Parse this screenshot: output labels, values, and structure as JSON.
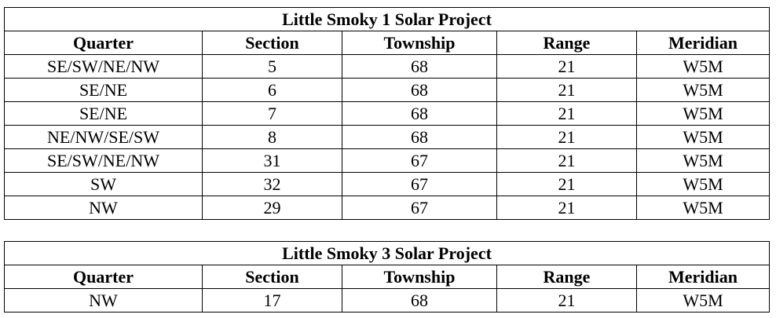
{
  "tables": [
    {
      "title": "Little Smoky 1 Solar Project",
      "columns": [
        "Quarter",
        "Section",
        "Township",
        "Range",
        "Meridian"
      ],
      "rows": [
        [
          "SE/SW/NE/NW",
          "5",
          "68",
          "21",
          "W5M"
        ],
        [
          "SE/NE",
          "6",
          "68",
          "21",
          "W5M"
        ],
        [
          "SE/NE",
          "7",
          "68",
          "21",
          "W5M"
        ],
        [
          "NE/NW/SE/SW",
          "8",
          "68",
          "21",
          "W5M"
        ],
        [
          "SE/SW/NE/NW",
          "31",
          "67",
          "21",
          "W5M"
        ],
        [
          "SW",
          "32",
          "67",
          "21",
          "W5M"
        ],
        [
          "NW",
          "29",
          "67",
          "21",
          "W5M"
        ]
      ]
    },
    {
      "title": "Little Smoky 3 Solar Project",
      "columns": [
        "Quarter",
        "Section",
        "Township",
        "Range",
        "Meridian"
      ],
      "rows": [
        [
          "NW",
          "17",
          "68",
          "21",
          "W5M"
        ]
      ]
    }
  ]
}
